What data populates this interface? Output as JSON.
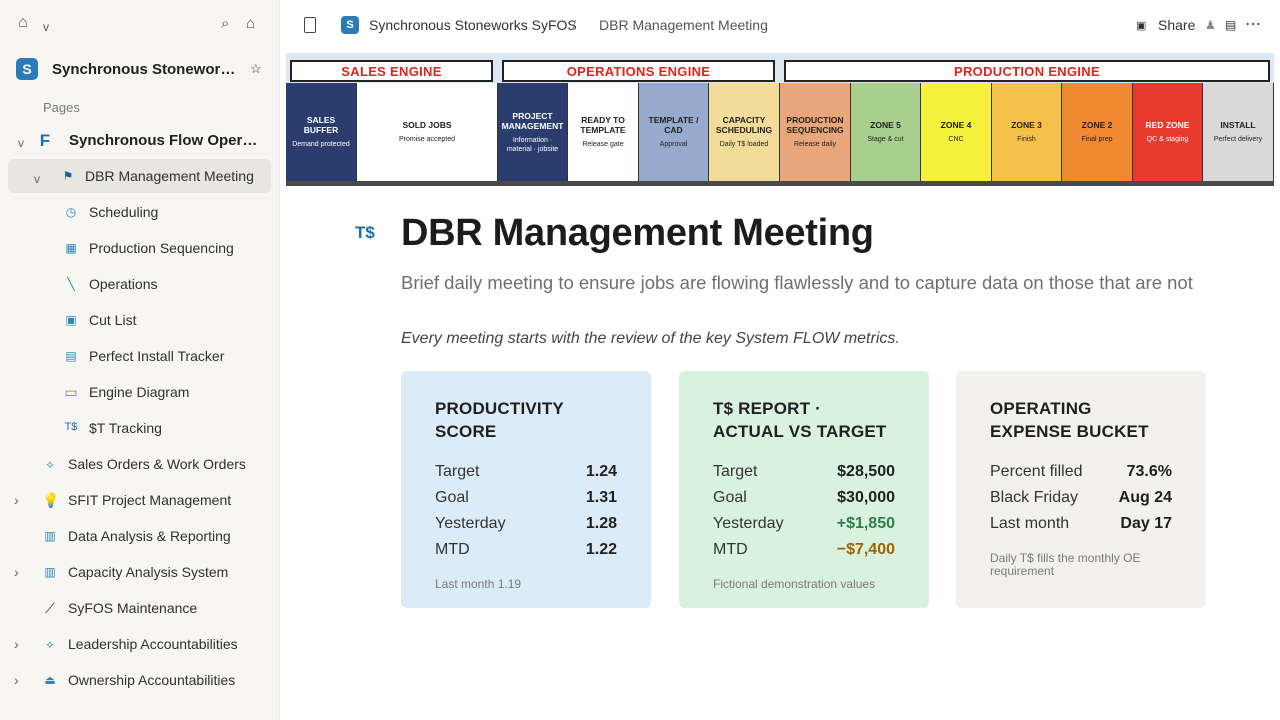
{
  "sidebar": {
    "workspace": {
      "logo": "S",
      "name": "Synchronous Stoneworks SyFOS"
    },
    "pages_label": "Pages",
    "items": [
      {
        "label": "Synchronous Flow Operating System",
        "icon": "F"
      },
      {
        "label": "DBR Management Meeting",
        "icon": "flag"
      },
      {
        "label": "Scheduling",
        "icon": "clock"
      },
      {
        "label": "Production Sequencing",
        "icon": "grid"
      },
      {
        "label": "Operations",
        "icon": "wrench"
      },
      {
        "label": "Cut List",
        "icon": "square"
      },
      {
        "label": "Perfect Install Tracker",
        "icon": "list"
      },
      {
        "label": "Engine Diagram",
        "icon": "bus"
      },
      {
        "label": "$T Tracking",
        "icon": "T$"
      },
      {
        "label": "Sales Orders & Work Orders",
        "icon": "tree"
      },
      {
        "label": "SFIT Project Management",
        "icon": "bulb"
      },
      {
        "label": "Data Analysis & Reporting",
        "icon": "table"
      },
      {
        "label": "Capacity Analysis System",
        "icon": "table"
      },
      {
        "label": "SyFOS Maintenance",
        "icon": "wrench"
      },
      {
        "label": "Leadership Accountabilities",
        "icon": "tree"
      },
      {
        "label": "Ownership Accountabilities",
        "icon": "person"
      }
    ]
  },
  "topbar": {
    "breadcrumb_root": "Synchronous Stoneworks SyFOS",
    "separator": "/",
    "breadcrumb_current": "DBR Management Meeting",
    "share_label": "Share"
  },
  "banner": {
    "engines": [
      {
        "label": "SALES ENGINE"
      },
      {
        "label": "OPERATIONS ENGINE"
      },
      {
        "label": "PRODUCTION ENGINE"
      }
    ],
    "stages": [
      {
        "title": "SALES BUFFER",
        "sub": "Demand protected",
        "bg": "#2b3d6e",
        "fg": "#ffffff"
      },
      {
        "title": "SOLD JOBS",
        "sub": "Promise accepted",
        "bg": "#ffffff",
        "fg": "#1f1f1f"
      },
      {
        "title": "PROJECT MANAGEMENT",
        "sub": "Information · material · jobsite",
        "bg": "#2b3d6e",
        "fg": "#ffffff"
      },
      {
        "title": "READY TO TEMPLATE",
        "sub": "Release gate",
        "bg": "#ffffff",
        "fg": "#1f1f1f"
      },
      {
        "title": "TEMPLATE / CAD",
        "sub": "Approval",
        "bg": "#97a9cc",
        "fg": "#1f1f1f"
      },
      {
        "title": "CAPACITY SCHEDULING",
        "sub": "Daily T$ loaded",
        "bg": "#f3dc9a",
        "fg": "#1f1f1f"
      },
      {
        "title": "PRODUCTION SEQUENCING",
        "sub": "Release daily",
        "bg": "#e8a67a",
        "fg": "#1f1f1f"
      },
      {
        "title": "ZONE 5",
        "sub": "Stage & cut",
        "bg": "#a9cf8f",
        "fg": "#1f1f1f"
      },
      {
        "title": "ZONE 4",
        "sub": "CNC",
        "bg": "#f4f03c",
        "fg": "#1f1f1f"
      },
      {
        "title": "ZONE 3",
        "sub": "Finish",
        "bg": "#f6c14a",
        "fg": "#1f1f1f"
      },
      {
        "title": "ZONE 2",
        "sub": "Final prep",
        "bg": "#ef8a33",
        "fg": "#1f1f1f"
      },
      {
        "title": "RED ZONE",
        "sub": "QC & staging",
        "bg": "#e83a2e",
        "fg": "#ffffff"
      },
      {
        "title": "INSTALL",
        "sub": "Perfect delivery",
        "bg": "#d9d9d9",
        "fg": "#1f1f1f"
      }
    ]
  },
  "page": {
    "icon": "T$",
    "title": "DBR Management Meeting",
    "description": "Brief daily meeting to ensure jobs are flowing flawlessly and to capture data on those that are not",
    "note": "Every meeting starts with the review of the key System FLOW metrics."
  },
  "cards": [
    {
      "title": "PRODUCTIVITY SCORE",
      "bg": "#dcebf8",
      "rows": [
        {
          "k": "Target",
          "v": "1.24",
          "color": "#1f1f1f"
        },
        {
          "k": "Goal",
          "v": "1.31",
          "color": "#1f1f1f"
        },
        {
          "k": "Yesterday",
          "v": "1.28",
          "color": "#1f1f1f"
        },
        {
          "k": "MTD",
          "v": "1.22",
          "color": "#1f1f1f"
        }
      ],
      "footnote": "Last month 1.19"
    },
    {
      "title": "T$ REPORT · ACTUAL VS TARGET",
      "bg": "#d8f2df",
      "rows": [
        {
          "k": "Target",
          "v": "$28,500",
          "color": "#1f1f1f"
        },
        {
          "k": "Goal",
          "v": "$30,000",
          "color": "#1f1f1f"
        },
        {
          "k": "Yesterday",
          "v": "+$1,850",
          "color": "#2e7d4f"
        },
        {
          "k": "MTD",
          "v": "−$7,400",
          "color": "#a06100"
        }
      ],
      "footnote": "Fictional demonstration values"
    },
    {
      "title": "OPERATING EXPENSE BUCKET",
      "bg": "#f2f1ed",
      "rows": [
        {
          "k": "Percent filled",
          "v": "73.6%",
          "color": "#1f1f1f"
        },
        {
          "k": "Black Friday",
          "v": "Aug 24",
          "color": "#1f1f1f"
        },
        {
          "k": "Last month",
          "v": "Day 17",
          "color": "#1f1f1f"
        }
      ],
      "footnote": "Daily T$ fills the monthly OE requirement"
    }
  ]
}
